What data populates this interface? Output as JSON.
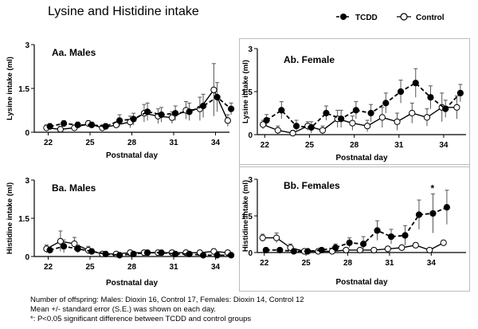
{
  "title": "Lysine and Histidine intake",
  "legend": {
    "tcdd": "TCDD",
    "control": "Control"
  },
  "colors": {
    "tcdd": "#000000",
    "control": "#ffffff",
    "errbar": "#555555",
    "axis": "#000000"
  },
  "notes": [
    "Number of offspring:  Males: Dioxin 16, Control 17, Females: Dioxin 14, Control 12",
    "Mean +/- standard error (S.E.) was shown on each day.",
    "*: P<0.05 significant difference between TCDD and control groups"
  ],
  "chart_data": [
    {
      "id": "Aa",
      "type": "line",
      "title": "Aa. Males",
      "xlabel": "Postnatal day",
      "ylabel": "Lysine intake (ml)",
      "ylim": [
        0,
        3
      ],
      "xlim": [
        21,
        35
      ],
      "yticks": [
        "0",
        "1.5",
        "3"
      ],
      "xticks": [
        "22",
        "25",
        "28",
        "31",
        "34"
      ],
      "x": [
        22,
        23,
        24,
        25,
        26,
        27,
        28,
        29,
        30,
        31,
        32,
        33,
        34,
        35
      ],
      "series": [
        {
          "name": "TCDD",
          "values": [
            0.2,
            0.3,
            0.25,
            0.25,
            0.2,
            0.4,
            0.45,
            0.7,
            0.6,
            0.65,
            0.7,
            0.9,
            1.2,
            0.8
          ],
          "errors": [
            0.1,
            0.1,
            0.1,
            0.1,
            0.1,
            0.2,
            0.2,
            0.3,
            0.25,
            0.25,
            0.3,
            0.4,
            0.5,
            0.2
          ]
        },
        {
          "name": "Control",
          "values": [
            0.15,
            0.1,
            0.15,
            0.3,
            0.15,
            0.25,
            0.35,
            0.65,
            0.55,
            0.5,
            0.75,
            0.8,
            1.45,
            0.4
          ],
          "errors": [
            0.1,
            0.1,
            0.1,
            0.1,
            0.1,
            0.1,
            0.2,
            0.3,
            0.25,
            0.2,
            0.3,
            0.4,
            0.9,
            0.2
          ]
        }
      ],
      "marks": []
    },
    {
      "id": "Ab",
      "type": "line",
      "title": "Ab. Female",
      "xlabel": "Postnatal day",
      "ylabel": "Lysine intake (ml)",
      "ylim": [
        0,
        3
      ],
      "xlim": [
        21.5,
        35.5
      ],
      "yticks": [
        "0",
        "1.5",
        "3"
      ],
      "xticks": [
        "22",
        "25",
        "28",
        "31",
        "34"
      ],
      "x": [
        22,
        23,
        24,
        25,
        26,
        27,
        28,
        29,
        30,
        31,
        32,
        33,
        34,
        35
      ],
      "series": [
        {
          "name": "TCDD",
          "values": [
            0.5,
            0.85,
            0.3,
            0.25,
            0.75,
            0.55,
            0.85,
            0.75,
            1.1,
            1.5,
            1.8,
            1.3,
            0.9,
            1.45
          ],
          "errors": [
            0.2,
            0.3,
            0.2,
            0.2,
            0.25,
            0.3,
            0.3,
            0.3,
            0.35,
            0.4,
            0.5,
            0.4,
            0.3,
            0.3
          ]
        },
        {
          "name": "Control",
          "values": [
            0.35,
            0.15,
            0.05,
            0.3,
            0.15,
            0.55,
            0.4,
            0.3,
            0.6,
            0.45,
            0.75,
            0.6,
            0.95,
            0.95
          ],
          "errors": [
            0.15,
            0.15,
            0.1,
            0.15,
            0.15,
            0.3,
            0.25,
            0.2,
            0.35,
            0.3,
            0.35,
            0.3,
            0.5,
            0.4
          ]
        }
      ],
      "marks": []
    },
    {
      "id": "Ba",
      "type": "line",
      "title": "Ba. Males",
      "xlabel": "Postnatal day",
      "ylabel": "Histidine  intake (ml)",
      "ylim": [
        0,
        3
      ],
      "xlim": [
        21,
        35
      ],
      "yticks": [
        "0",
        "1.5",
        "3"
      ],
      "xticks": [
        "22",
        "25",
        "28",
        "31",
        "34"
      ],
      "x": [
        22,
        23,
        24,
        25,
        26,
        27,
        28,
        29,
        30,
        31,
        32,
        33,
        34,
        35
      ],
      "series": [
        {
          "name": "TCDD",
          "values": [
            0.25,
            0.4,
            0.3,
            0.2,
            0.1,
            0.05,
            0.1,
            0.15,
            0.15,
            0.1,
            0.1,
            0.05,
            0.05,
            0.05
          ],
          "errors": [
            0.1,
            0.25,
            0.15,
            0.1,
            0.05,
            0.05,
            0.05,
            0.1,
            0.1,
            0.05,
            0.05,
            0.05,
            0.05,
            0.05
          ]
        },
        {
          "name": "Control",
          "values": [
            0.3,
            0.6,
            0.5,
            0.25,
            0.1,
            0.1,
            0.15,
            0.15,
            0.15,
            0.15,
            0.15,
            0.15,
            0.2,
            0.15
          ],
          "errors": [
            0.15,
            0.4,
            0.25,
            0.15,
            0.05,
            0.05,
            0.1,
            0.1,
            0.1,
            0.1,
            0.1,
            0.1,
            0.1,
            0.1
          ]
        }
      ],
      "marks": []
    },
    {
      "id": "Bb",
      "type": "line",
      "title": "Bb. Females",
      "xlabel": "Postnatal day",
      "ylabel": "Histidine intake (ml)",
      "ylim": [
        0,
        3
      ],
      "xlim": [
        21.5,
        36.5
      ],
      "yticks": [
        "0",
        "1.5",
        "3"
      ],
      "xticks": [
        "22",
        "25",
        "28",
        "31",
        "34"
      ],
      "x": [
        22,
        23,
        24,
        25,
        26,
        27,
        28,
        29,
        30,
        31,
        32,
        33,
        34,
        35
      ],
      "series": [
        {
          "name": "TCDD",
          "values": [
            0.1,
            0.1,
            0.05,
            0.05,
            0.1,
            0.2,
            0.4,
            0.35,
            0.9,
            0.65,
            0.7,
            1.55,
            1.6,
            1.85
          ],
          "errors": [
            0.05,
            0.05,
            0.05,
            0.05,
            0.1,
            0.15,
            0.2,
            0.3,
            0.4,
            0.3,
            0.4,
            0.6,
            0.8,
            0.7
          ]
        },
        {
          "name": "Control",
          "values": [
            0.6,
            0.6,
            0.2,
            0.05,
            0.05,
            0.05,
            0.1,
            0.1,
            0.1,
            0.15,
            0.2,
            0.3,
            0.1,
            0.4
          ],
          "errors": [
            0.15,
            0.2,
            0.15,
            0.05,
            0.05,
            0.05,
            0.05,
            0.05,
            0.05,
            0.1,
            0.1,
            0.1,
            0.05,
            0.1
          ]
        }
      ],
      "marks": [
        {
          "x": 34,
          "text": "*"
        }
      ]
    }
  ]
}
